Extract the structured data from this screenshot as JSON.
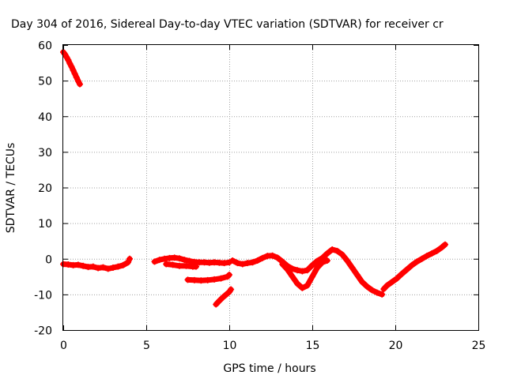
{
  "chart_data": {
    "type": "scatter",
    "title": "Day 304 of 2016, Sidereal Day-to-day VTEC variation (SDTVAR) for receiver cr",
    "xlabel": "GPS time / hours",
    "ylabel": "SDTVAR / TECUs",
    "xlim": [
      0,
      25
    ],
    "ylim": [
      -20,
      60
    ],
    "xticks": [
      0,
      5,
      10,
      15,
      20,
      25
    ],
    "yticks": [
      -20,
      -10,
      0,
      10,
      20,
      30,
      40,
      50,
      60
    ],
    "xtick_labels": [
      "0",
      "5",
      "10",
      "15",
      "20",
      "25"
    ],
    "ytick_labels": [
      "-20",
      "-10",
      "0",
      "10",
      "20",
      "30",
      "40",
      "50",
      "60"
    ],
    "grid": true,
    "legend": "none",
    "color": "#ff0000",
    "series": [
      {
        "x": [
          0.0,
          0.1,
          0.2,
          0.3,
          0.4,
          0.5,
          0.6,
          0.7,
          0.8,
          0.9,
          1.0
        ],
        "y": [
          58,
          57.4,
          56.6,
          55.8,
          54.8,
          53.9,
          52.9,
          51.9,
          50.9,
          49.9,
          49
        ]
      },
      {
        "x": [
          0.0,
          0.3,
          0.6,
          0.9,
          1.2,
          1.5,
          1.8,
          2.1,
          2.4,
          2.7,
          3.0,
          3.3,
          3.6,
          3.9,
          4.0
        ],
        "y": [
          -1.5,
          -1.6,
          -1.8,
          -1.7,
          -2.0,
          -2.3,
          -2.2,
          -2.6,
          -2.4,
          -2.8,
          -2.5,
          -2.2,
          -1.8,
          -1.0,
          0
        ]
      },
      {
        "x": [
          5.5,
          5.8,
          6.1,
          6.4,
          6.7,
          7.0,
          7.3,
          7.6,
          7.9,
          8.2,
          8.5,
          8.8,
          9.1,
          9.4,
          9.7,
          10.0
        ],
        "y": [
          -0.8,
          -0.3,
          0.0,
          0.2,
          0.3,
          0.1,
          -0.3,
          -0.6,
          -0.9,
          -1.0,
          -1.0,
          -1.1,
          -1.0,
          -1.1,
          -1.2,
          -1.0
        ]
      },
      {
        "x": [
          6.2,
          6.6,
          7.0,
          7.4,
          7.8,
          8.0
        ],
        "y": [
          -1.5,
          -1.7,
          -2.0,
          -2.0,
          -2.2,
          -2.2
        ]
      },
      {
        "x": [
          7.5,
          7.9,
          8.3,
          8.7,
          9.1,
          9.5,
          9.9,
          10.0
        ],
        "y": [
          -5.9,
          -6.0,
          -6.1,
          -6.0,
          -5.8,
          -5.5,
          -5.0,
          -4.5
        ]
      },
      {
        "x": [
          9.2,
          9.4,
          9.6,
          9.8,
          10.0,
          10.1
        ],
        "y": [
          -12.8,
          -11.8,
          -10.9,
          -10.1,
          -9.3,
          -8.6
        ]
      },
      {
        "x": [
          10.2,
          10.5,
          10.8,
          11.1,
          11.4,
          11.7,
          12.0,
          12.3,
          12.6,
          12.9,
          13.2,
          13.5,
          13.8,
          14.1,
          14.4,
          14.7,
          15.0,
          15.3,
          15.6,
          15.9,
          16.2,
          16.5,
          16.8,
          17.1,
          17.4,
          17.7,
          18.0,
          18.3,
          18.6,
          18.9,
          19.2
        ],
        "y": [
          -0.5,
          -1.2,
          -1.5,
          -1.2,
          -1.0,
          -0.5,
          0.2,
          0.8,
          0.9,
          0.3,
          -0.8,
          -2.0,
          -2.8,
          -3.2,
          -3.5,
          -3.2,
          -1.8,
          -0.6,
          0.2,
          1.5,
          2.6,
          2.2,
          1.2,
          -0.5,
          -2.5,
          -4.5,
          -6.5,
          -7.8,
          -8.8,
          -9.5,
          -10.0
        ]
      },
      {
        "x": [
          13.2,
          13.5,
          13.8,
          14.1,
          14.4,
          14.7,
          15.0,
          15.3,
          15.6,
          15.9
        ],
        "y": [
          -1.5,
          -3.0,
          -5.0,
          -7.0,
          -8.2,
          -7.5,
          -5.0,
          -2.5,
          -1.0,
          -0.5
        ]
      },
      {
        "x": [
          19.3,
          19.5,
          19.8,
          20.1,
          20.4,
          20.7,
          21.0,
          21.3,
          21.6,
          21.9,
          22.2,
          22.5,
          22.8,
          23.0
        ],
        "y": [
          -8.5,
          -7.5,
          -6.5,
          -5.5,
          -4.2,
          -3.0,
          -1.8,
          -0.8,
          0.0,
          0.8,
          1.5,
          2.2,
          3.2,
          4.0
        ]
      }
    ]
  }
}
